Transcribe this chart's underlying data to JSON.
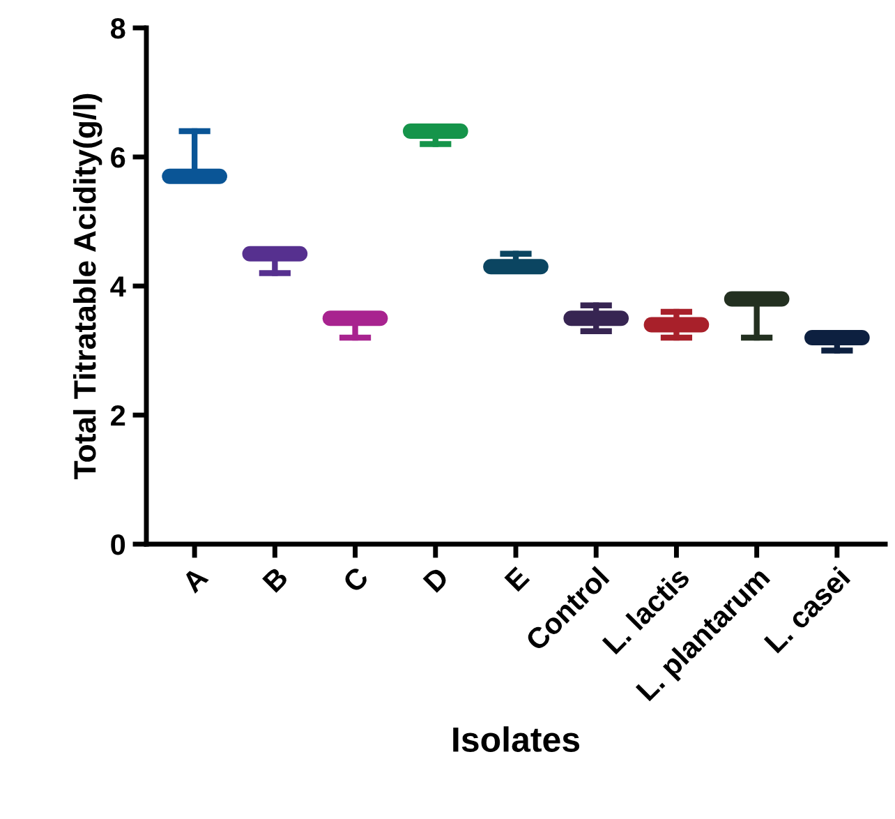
{
  "chart_data": {
    "type": "box",
    "xlabel": "Isolates",
    "ylabel": "Total Titratable Acidity(g/l)",
    "categories": [
      "A",
      "B",
      "C",
      "D",
      "E",
      "Control",
      "L. lactis",
      "L. plantarum",
      "L. casei"
    ],
    "boxes": [
      {
        "low": 5.7,
        "q1": 5.7,
        "median": 5.7,
        "q3": 5.7,
        "high": 6.4
      },
      {
        "low": 4.2,
        "q1": 4.5,
        "median": 4.5,
        "q3": 4.5,
        "high": 4.5
      },
      {
        "low": 3.2,
        "q1": 3.5,
        "median": 3.5,
        "q3": 3.5,
        "high": 3.5
      },
      {
        "low": 6.2,
        "q1": 6.4,
        "median": 6.4,
        "q3": 6.4,
        "high": 6.4
      },
      {
        "low": 4.3,
        "q1": 4.3,
        "median": 4.3,
        "q3": 4.3,
        "high": 4.5
      },
      {
        "low": 3.3,
        "q1": 3.5,
        "median": 3.5,
        "q3": 3.5,
        "high": 3.7
      },
      {
        "low": 3.2,
        "q1": 3.4,
        "median": 3.4,
        "q3": 3.4,
        "high": 3.6
      },
      {
        "low": 3.2,
        "q1": 3.8,
        "median": 3.8,
        "q3": 3.8,
        "high": 3.8
      },
      {
        "low": 3.0,
        "q1": 3.2,
        "median": 3.2,
        "q3": 3.2,
        "high": 3.2
      }
    ],
    "colors": [
      "#0a5596",
      "#56308f",
      "#a8238f",
      "#15944a",
      "#0b4561",
      "#372552",
      "#a8202a",
      "#233020",
      "#0d2040"
    ],
    "ylim": [
      0,
      8
    ],
    "yticks": [
      0,
      2,
      4,
      6,
      8
    ],
    "grid": false,
    "legend": false
  }
}
